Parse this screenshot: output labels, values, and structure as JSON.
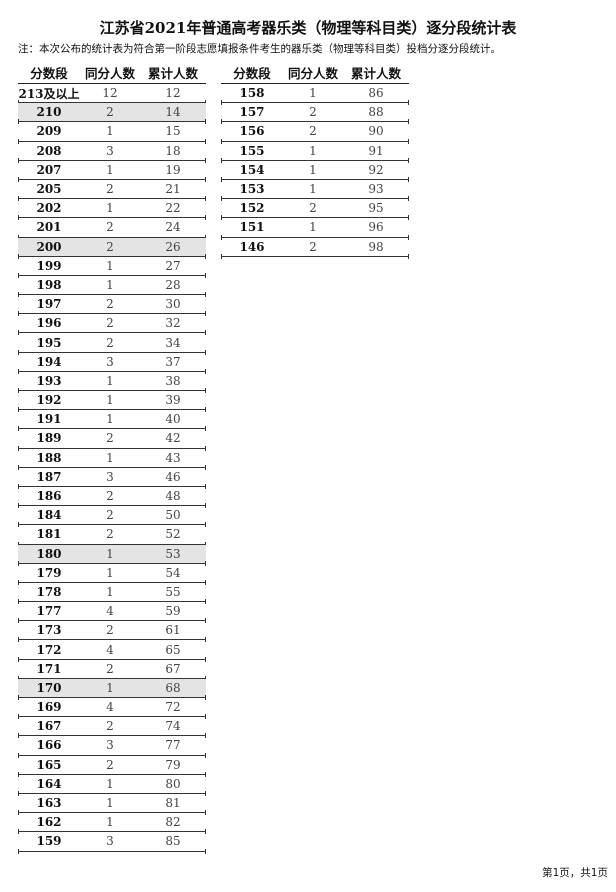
{
  "title": "江苏省2021年普通高考器乐类（物理等科目类）逐分段统计表",
  "note": "注：本次公布的统计表为符合第一阶段志愿填报条件考生的器乐类（物理等科目类）投档分逐分段统计。",
  "headers": [
    "分数段",
    "同分人数",
    "累计人数"
  ],
  "left_rows": [
    [
      "213及以上",
      "12",
      "12"
    ],
    [
      "210",
      "2",
      "14"
    ],
    [
      "209",
      "1",
      "15"
    ],
    [
      "208",
      "3",
      "18"
    ],
    [
      "207",
      "1",
      "19"
    ],
    [
      "205",
      "2",
      "21"
    ],
    [
      "202",
      "1",
      "22"
    ],
    [
      "201",
      "2",
      "24"
    ],
    [
      "200",
      "2",
      "26"
    ],
    [
      "199",
      "1",
      "27"
    ],
    [
      "198",
      "1",
      "28"
    ],
    [
      "197",
      "2",
      "30"
    ],
    [
      "196",
      "2",
      "32"
    ],
    [
      "195",
      "2",
      "34"
    ],
    [
      "194",
      "3",
      "37"
    ],
    [
      "193",
      "1",
      "38"
    ],
    [
      "192",
      "1",
      "39"
    ],
    [
      "191",
      "1",
      "40"
    ],
    [
      "189",
      "2",
      "42"
    ],
    [
      "188",
      "1",
      "43"
    ],
    [
      "187",
      "3",
      "46"
    ],
    [
      "186",
      "2",
      "48"
    ],
    [
      "184",
      "2",
      "50"
    ],
    [
      "181",
      "2",
      "52"
    ],
    [
      "180",
      "1",
      "53"
    ],
    [
      "179",
      "1",
      "54"
    ],
    [
      "178",
      "1",
      "55"
    ],
    [
      "177",
      "4",
      "59"
    ],
    [
      "173",
      "2",
      "61"
    ],
    [
      "172",
      "4",
      "65"
    ],
    [
      "171",
      "2",
      "67"
    ],
    [
      "170",
      "1",
      "68"
    ],
    [
      "169",
      "4",
      "72"
    ],
    [
      "167",
      "2",
      "74"
    ],
    [
      "166",
      "3",
      "77"
    ],
    [
      "165",
      "2",
      "79"
    ],
    [
      "164",
      "1",
      "80"
    ],
    [
      "163",
      "1",
      "81"
    ],
    [
      "162",
      "1",
      "82"
    ],
    [
      "159",
      "3",
      "85"
    ]
  ],
  "right_rows": [
    [
      "158",
      "1",
      "86"
    ],
    [
      "157",
      "2",
      "88"
    ],
    [
      "156",
      "2",
      "90"
    ],
    [
      "155",
      "1",
      "91"
    ],
    [
      "154",
      "1",
      "92"
    ],
    [
      "153",
      "1",
      "93"
    ],
    [
      "152",
      "2",
      "95"
    ],
    [
      "151",
      "1",
      "96"
    ],
    [
      "146",
      "2",
      "98"
    ]
  ],
  "highlighted_scores": [
    "210",
    "200",
    "180",
    "170"
  ],
  "highlight_color": "#e4e4e4",
  "footer": "第1页，共1页"
}
